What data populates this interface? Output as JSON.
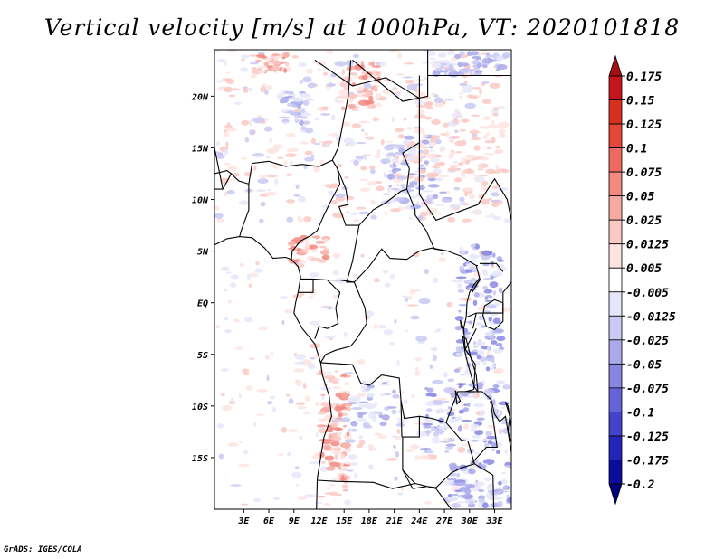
{
  "title": "Vertical velocity [m/s] at 1000hPa, VT: 2020101818",
  "credit": "GrADS: IGES/COLA",
  "map": {
    "lon_range": [
      -0.5,
      35.0
    ],
    "lat_range": [
      -20.0,
      24.5
    ],
    "lon_ticks": [
      {
        "value": 3,
        "label": "3E"
      },
      {
        "value": 6,
        "label": "6E"
      },
      {
        "value": 9,
        "label": "9E"
      },
      {
        "value": 12,
        "label": "12E"
      },
      {
        "value": 15,
        "label": "15E"
      },
      {
        "value": 18,
        "label": "18E"
      },
      {
        "value": 21,
        "label": "21E"
      },
      {
        "value": 24,
        "label": "24E"
      },
      {
        "value": 27,
        "label": "27E"
      },
      {
        "value": 30,
        "label": "30E"
      },
      {
        "value": 33,
        "label": "33E"
      }
    ],
    "lat_ticks": [
      {
        "value": 20,
        "label": "20N"
      },
      {
        "value": 15,
        "label": "15N"
      },
      {
        "value": 10,
        "label": "10N"
      },
      {
        "value": 5,
        "label": "5N"
      },
      {
        "value": 0,
        "label": "EQ"
      },
      {
        "value": -5,
        "label": "5S"
      },
      {
        "value": -10,
        "label": "10S"
      },
      {
        "value": -15,
        "label": "15S"
      }
    ]
  },
  "colorbar": {
    "labels": [
      "0.175",
      "0.15",
      "0.125",
      "0.1",
      "0.075",
      "0.05",
      "0.025",
      "0.0125",
      "0.005",
      "-0.005",
      "-0.0125",
      "-0.025",
      "-0.05",
      "-0.075",
      "-0.1",
      "-0.125",
      "-0.175",
      "-0.2"
    ],
    "colors": [
      "#a50f15",
      "#c4161c",
      "#d7301f",
      "#e4463a",
      "#ec6a5f",
      "#f28a80",
      "#f6aaa3",
      "#fac9c4",
      "#fde4e1",
      "#ffffff",
      "#e6e6fa",
      "#c9c9f3",
      "#a9a9ec",
      "#8787e2",
      "#6464d8",
      "#4343cb",
      "#2424b8",
      "#0b0b9c",
      "#00007a"
    ]
  }
}
